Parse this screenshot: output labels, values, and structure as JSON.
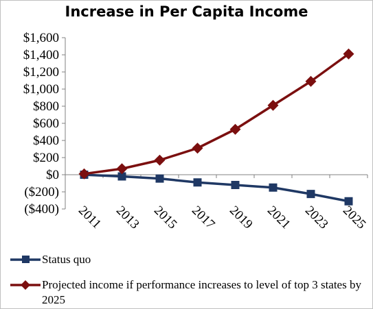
{
  "chart_data": {
    "type": "line",
    "title": "Increase in Per Capita Income",
    "xlabel": "",
    "ylabel": "",
    "categories": [
      "2011",
      "2013",
      "2015",
      "2017",
      "2019",
      "2021",
      "2023",
      "2025"
    ],
    "ylim": [
      -400,
      1600
    ],
    "y_ticks": [
      -400,
      -200,
      0,
      200,
      400,
      600,
      800,
      1000,
      1200,
      1400,
      1600
    ],
    "y_tick_labels": [
      "($400)",
      "($200)",
      "$0",
      "$200",
      "$400",
      "$600",
      "$800",
      "$1,000",
      "$1,200",
      "$1,400",
      "$1,600"
    ],
    "grid": false,
    "legend_position": "bottom",
    "series": [
      {
        "name": "Status quo",
        "marker": "square",
        "color": "#1f3864",
        "values": [
          0,
          -20,
          -45,
          -90,
          -120,
          -150,
          -225,
          -310
        ]
      },
      {
        "name": "Projected income if performance increases to level of top 3 states by 2025",
        "marker": "diamond",
        "color": "#7b0f0f",
        "values": [
          10,
          70,
          170,
          310,
          530,
          810,
          1090,
          1410
        ]
      }
    ]
  }
}
